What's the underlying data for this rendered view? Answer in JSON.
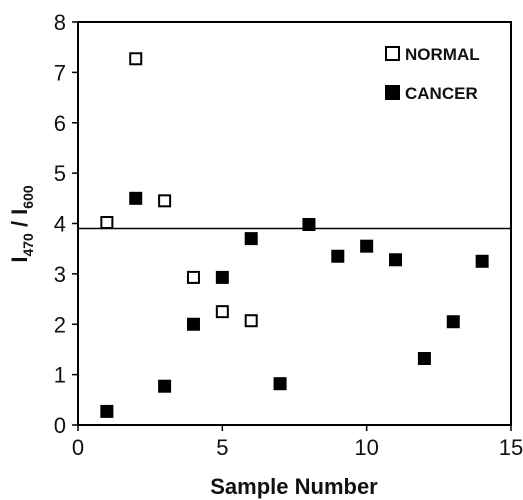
{
  "chart_data": {
    "type": "scatter",
    "title": "",
    "xlabel": "Sample Number",
    "ylabel_main": "I",
    "ylabel_sub1": "470",
    "ylabel_mid": " / I",
    "ylabel_sub2": "600",
    "xlim": [
      0,
      15
    ],
    "ylim": [
      0,
      8
    ],
    "xticks": [
      0,
      5,
      10,
      15
    ],
    "yticks": [
      0,
      1,
      2,
      3,
      4,
      5,
      6,
      7,
      8
    ],
    "grid": false,
    "legend_position": "top-right",
    "threshold_y": 3.9,
    "series": [
      {
        "name": "NORMAL",
        "marker": "square-open",
        "color": "#000000",
        "points": [
          {
            "x": 1,
            "y": 4.02
          },
          {
            "x": 2,
            "y": 7.27
          },
          {
            "x": 3,
            "y": 4.45
          },
          {
            "x": 4,
            "y": 2.93
          },
          {
            "x": 5,
            "y": 2.25
          },
          {
            "x": 6,
            "y": 2.07
          }
        ]
      },
      {
        "name": "CANCER",
        "marker": "square-filled",
        "color": "#000000",
        "points": [
          {
            "x": 1,
            "y": 0.27
          },
          {
            "x": 2,
            "y": 4.5
          },
          {
            "x": 3,
            "y": 0.77
          },
          {
            "x": 4,
            "y": 2.0
          },
          {
            "x": 5,
            "y": 2.93
          },
          {
            "x": 6,
            "y": 3.7
          },
          {
            "x": 7,
            "y": 0.82
          },
          {
            "x": 8,
            "y": 3.98
          },
          {
            "x": 9,
            "y": 3.35
          },
          {
            "x": 10,
            "y": 3.55
          },
          {
            "x": 11,
            "y": 3.28
          },
          {
            "x": 12,
            "y": 1.32
          },
          {
            "x": 13,
            "y": 2.05
          },
          {
            "x": 14,
            "y": 3.25
          }
        ]
      }
    ]
  }
}
